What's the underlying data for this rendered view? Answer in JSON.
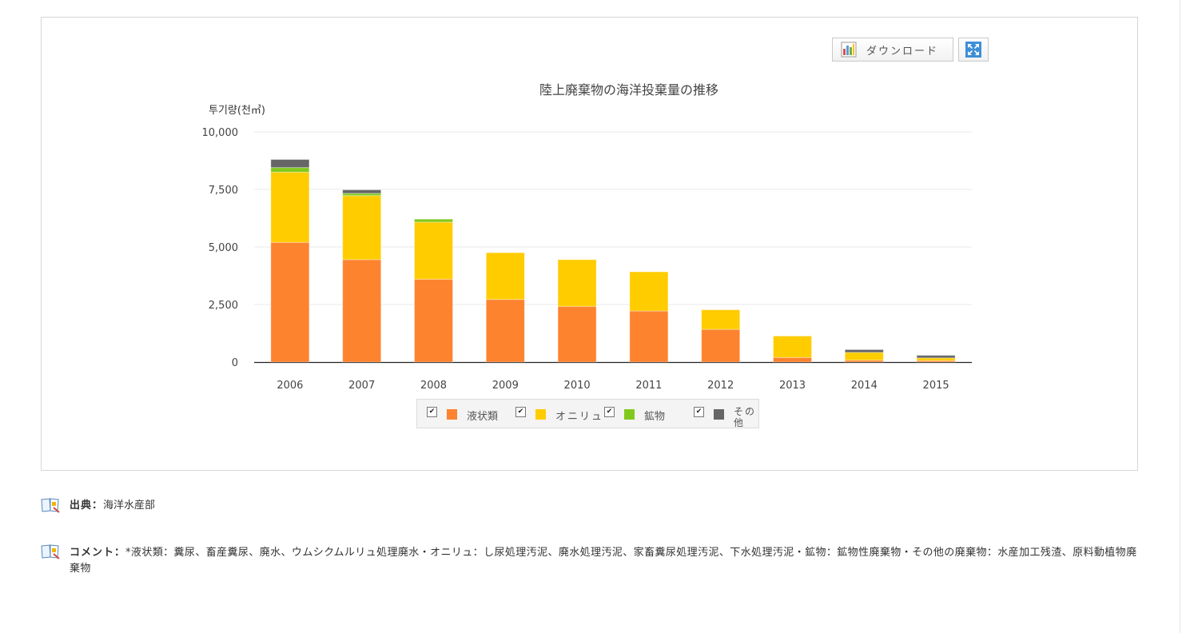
{
  "toolbar": {
    "download_label": "ダウンロード",
    "download_icon": "chart-download-icon",
    "expand_icon": "expand-icon"
  },
  "chart_data": {
    "type": "bar",
    "stacked": true,
    "title": "陸上廃棄物の海洋投棄量の推移",
    "ylabel": "투기량(천㎥)",
    "xlabel": "",
    "ylim": [
      0,
      10000
    ],
    "yticks": [
      "10,000",
      "7,500",
      "5,000",
      "2,500",
      "0"
    ],
    "categories": [
      "2006",
      "2007",
      "2008",
      "2009",
      "2010",
      "2011",
      "2012",
      "2013",
      "2014",
      "2015"
    ],
    "series": [
      {
        "name": "液状類",
        "color": "#fe832f",
        "values": [
          5200,
          4450,
          3600,
          2720,
          2420,
          2220,
          1420,
          200,
          80,
          60
        ]
      },
      {
        "name": "オニリュ",
        "color": "#ffcc00",
        "values": [
          3050,
          2780,
          2480,
          2030,
          2030,
          1700,
          850,
          930,
          340,
          120
        ]
      },
      {
        "name": "鉱物",
        "color": "#82c91e",
        "values": [
          200,
          100,
          130,
          0,
          0,
          0,
          0,
          0,
          0,
          0
        ]
      },
      {
        "name": "その他",
        "color": "#666666",
        "values": [
          350,
          150,
          0,
          0,
          0,
          0,
          0,
          0,
          120,
          110
        ]
      }
    ],
    "grid": true,
    "legend_position": "bottom"
  },
  "legend": {
    "items": [
      {
        "label": "液状類",
        "checked": "✔"
      },
      {
        "label": "オニリュ",
        "checked": "✔"
      },
      {
        "label": "鉱物",
        "checked": "✔"
      },
      {
        "label": "その他",
        "checked": "✔"
      }
    ]
  },
  "notes": {
    "source_label": "出典：",
    "source_text": "海洋水産部",
    "comment_label": "コメント：",
    "comment_text": "*液状類：糞尿、畜産糞尿、廃水、ウムシクムルリュ処理廃水・オニリュ：し尿処理汚泥、廃水処理汚泥、家畜糞尿処理汚泥、下水処理汚泥・鉱物：鉱物性廃棄物・その他の廃棄物：水産加工残渣、原料動植物廃棄物",
    "book_icon": "book-icon"
  }
}
